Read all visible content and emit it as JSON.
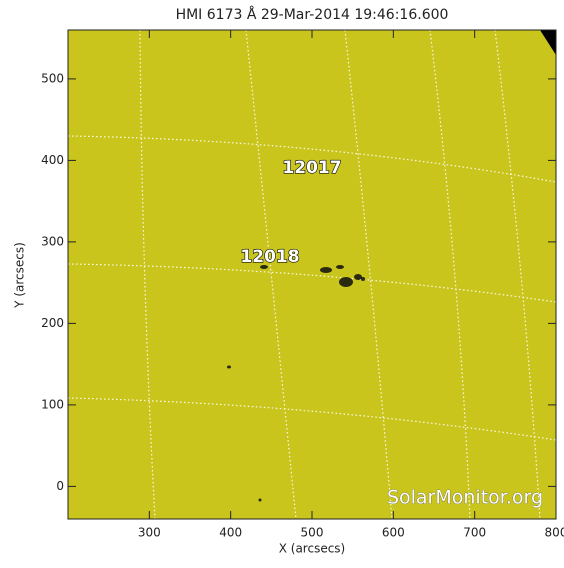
{
  "chart_data": {
    "type": "image",
    "title": "HMI 6173 Å 29-Mar-2014 19:46:16.600",
    "x_label": "X (arcsecs)",
    "y_label": "Y (arcsecs)",
    "xlim": [
      200,
      800
    ],
    "xticks": [
      300,
      400,
      500,
      600,
      700,
      800
    ],
    "ylim": [
      -40,
      560
    ],
    "yticks": [
      0,
      100,
      200,
      300,
      400,
      500
    ],
    "annotations": [
      "12017",
      "12018"
    ],
    "watermark": "SolarMonitor.org",
    "color": "#c9c51c"
  }
}
